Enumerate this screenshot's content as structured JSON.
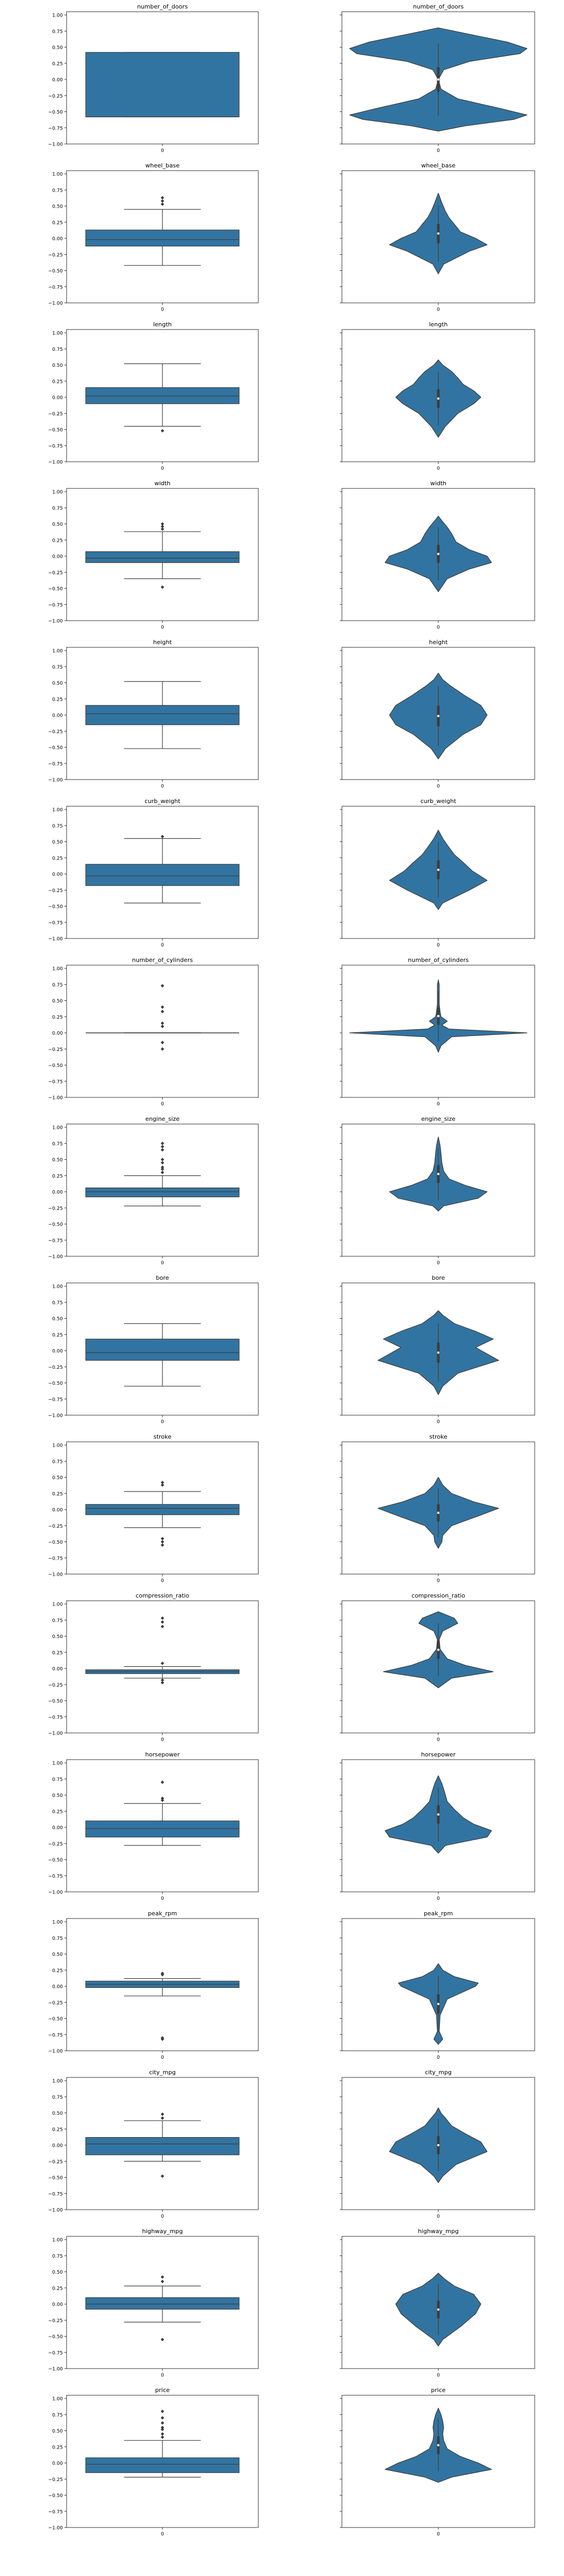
{
  "colors": {
    "fill": "#3274a1",
    "edge": "#3d3d3d",
    "axis": "#000000"
  },
  "shared_axes": {
    "ylim": [
      -1.0,
      1.05
    ],
    "yticks": [
      -1.0,
      -0.75,
      -0.5,
      -0.25,
      0.0,
      0.25,
      0.5,
      0.75,
      1.0
    ],
    "ytick_labels": [
      "−1.00",
      "−0.75",
      "−0.50",
      "−0.25",
      "0.00",
      "0.25",
      "0.50",
      "0.75",
      "1.00"
    ],
    "xtick_label": "0"
  },
  "chart_data": [
    {
      "type": "box",
      "title": "number_of_doors",
      "box": {
        "q1": -0.58,
        "median": -0.58,
        "q3": 0.42,
        "whislo": -0.58,
        "whishi": 0.42,
        "fliers": []
      }
    },
    {
      "type": "violin",
      "title": "number_of_doors",
      "density": [
        [
          -0.8,
          0.0
        ],
        [
          -0.72,
          0.3
        ],
        [
          -0.62,
          0.85
        ],
        [
          -0.55,
          1.0
        ],
        [
          -0.45,
          0.7
        ],
        [
          -0.3,
          0.22
        ],
        [
          -0.15,
          0.03
        ],
        [
          0.0,
          0.0
        ],
        [
          0.15,
          0.06
        ],
        [
          0.28,
          0.35
        ],
        [
          0.4,
          0.92
        ],
        [
          0.48,
          1.0
        ],
        [
          0.58,
          0.78
        ],
        [
          0.7,
          0.35
        ],
        [
          0.8,
          0.0
        ]
      ]
    },
    {
      "type": "box",
      "title": "wheel_base",
      "box": {
        "q1": -0.12,
        "median": -0.02,
        "q3": 0.13,
        "whislo": -0.42,
        "whishi": 0.45,
        "fliers": [
          0.53,
          0.58,
          0.63
        ]
      }
    },
    {
      "type": "violin",
      "title": "wheel_base",
      "density": [
        [
          -0.55,
          0.0
        ],
        [
          -0.4,
          0.06
        ],
        [
          -0.2,
          0.35
        ],
        [
          -0.1,
          0.55
        ],
        [
          0.0,
          0.42
        ],
        [
          0.1,
          0.25
        ],
        [
          0.22,
          0.18
        ],
        [
          0.32,
          0.12
        ],
        [
          0.42,
          0.08
        ],
        [
          0.55,
          0.04
        ],
        [
          0.7,
          0.0
        ]
      ]
    },
    {
      "type": "box",
      "title": "length",
      "box": {
        "q1": -0.1,
        "median": 0.02,
        "q3": 0.15,
        "whislo": -0.45,
        "whishi": 0.52,
        "fliers": [
          -0.52
        ]
      }
    },
    {
      "type": "violin",
      "title": "length",
      "density": [
        [
          -0.62,
          0.0
        ],
        [
          -0.45,
          0.08
        ],
        [
          -0.25,
          0.22
        ],
        [
          -0.1,
          0.4
        ],
        [
          0.0,
          0.48
        ],
        [
          0.1,
          0.4
        ],
        [
          0.2,
          0.28
        ],
        [
          0.3,
          0.22
        ],
        [
          0.4,
          0.15
        ],
        [
          0.5,
          0.05
        ],
        [
          0.58,
          0.0
        ]
      ]
    },
    {
      "type": "box",
      "title": "width",
      "box": {
        "q1": -0.1,
        "median": -0.03,
        "q3": 0.07,
        "whislo": -0.35,
        "whishi": 0.38,
        "fliers": [
          -0.48,
          0.42,
          0.46,
          0.5
        ]
      }
    },
    {
      "type": "violin",
      "title": "width",
      "density": [
        [
          -0.55,
          0.0
        ],
        [
          -0.35,
          0.1
        ],
        [
          -0.2,
          0.35
        ],
        [
          -0.1,
          0.6
        ],
        [
          0.0,
          0.55
        ],
        [
          0.1,
          0.35
        ],
        [
          0.22,
          0.2
        ],
        [
          0.35,
          0.15
        ],
        [
          0.45,
          0.1
        ],
        [
          0.55,
          0.04
        ],
        [
          0.62,
          0.0
        ]
      ]
    },
    {
      "type": "box",
      "title": "height",
      "box": {
        "q1": -0.15,
        "median": 0.02,
        "q3": 0.15,
        "whislo": -0.52,
        "whishi": 0.52,
        "fliers": []
      }
    },
    {
      "type": "violin",
      "title": "height",
      "density": [
        [
          -0.68,
          0.0
        ],
        [
          -0.52,
          0.08
        ],
        [
          -0.3,
          0.28
        ],
        [
          -0.15,
          0.48
        ],
        [
          0.0,
          0.55
        ],
        [
          0.15,
          0.48
        ],
        [
          0.3,
          0.3
        ],
        [
          0.45,
          0.14
        ],
        [
          0.55,
          0.05
        ],
        [
          0.65,
          0.0
        ]
      ]
    },
    {
      "type": "box",
      "title": "curb_weight",
      "box": {
        "q1": -0.18,
        "median": -0.03,
        "q3": 0.15,
        "whislo": -0.45,
        "whishi": 0.55,
        "fliers": [
          0.58
        ]
      }
    },
    {
      "type": "violin",
      "title": "curb_weight",
      "density": [
        [
          -0.55,
          0.0
        ],
        [
          -0.45,
          0.05
        ],
        [
          -0.25,
          0.35
        ],
        [
          -0.1,
          0.55
        ],
        [
          0.05,
          0.38
        ],
        [
          0.18,
          0.28
        ],
        [
          0.3,
          0.18
        ],
        [
          0.45,
          0.1
        ],
        [
          0.55,
          0.05
        ],
        [
          0.68,
          0.0
        ]
      ]
    },
    {
      "type": "box",
      "title": "number_of_cylinders",
      "box": {
        "q1": 0.0,
        "median": 0.0,
        "q3": 0.0,
        "whislo": 0.0,
        "whishi": 0.0,
        "fliers": [
          -0.25,
          -0.15,
          0.1,
          0.15,
          0.33,
          0.4,
          0.73
        ]
      }
    },
    {
      "type": "violin",
      "title": "number_of_cylinders",
      "density": [
        [
          -0.3,
          0.0
        ],
        [
          -0.2,
          0.03
        ],
        [
          -0.06,
          0.15
        ],
        [
          0.0,
          1.0
        ],
        [
          0.06,
          0.12
        ],
        [
          0.12,
          0.04
        ],
        [
          0.18,
          0.1
        ],
        [
          0.25,
          0.03
        ],
        [
          0.33,
          0.02
        ],
        [
          0.45,
          0.01
        ],
        [
          0.6,
          0.01
        ],
        [
          0.75,
          0.01
        ],
        [
          0.82,
          0.0
        ]
      ]
    },
    {
      "type": "box",
      "title": "engine_size",
      "box": {
        "q1": -0.08,
        "median": 0.0,
        "q3": 0.06,
        "whislo": -0.22,
        "whishi": 0.25,
        "fliers": [
          0.3,
          0.35,
          0.38,
          0.45,
          0.5,
          0.65,
          0.7,
          0.75
        ]
      }
    },
    {
      "type": "violin",
      "title": "engine_size",
      "density": [
        [
          -0.3,
          0.0
        ],
        [
          -0.22,
          0.06
        ],
        [
          -0.1,
          0.45
        ],
        [
          0.0,
          0.55
        ],
        [
          0.1,
          0.3
        ],
        [
          0.2,
          0.12
        ],
        [
          0.32,
          0.06
        ],
        [
          0.45,
          0.04
        ],
        [
          0.6,
          0.03
        ],
        [
          0.72,
          0.02
        ],
        [
          0.85,
          0.0
        ]
      ]
    },
    {
      "type": "box",
      "title": "bore",
      "box": {
        "q1": -0.15,
        "median": -0.03,
        "q3": 0.18,
        "whislo": -0.55,
        "whishi": 0.42,
        "fliers": []
      }
    },
    {
      "type": "violin",
      "title": "bore",
      "density": [
        [
          -0.68,
          0.0
        ],
        [
          -0.55,
          0.05
        ],
        [
          -0.35,
          0.22
        ],
        [
          -0.15,
          0.68
        ],
        [
          -0.05,
          0.55
        ],
        [
          0.05,
          0.42
        ],
        [
          0.18,
          0.62
        ],
        [
          0.3,
          0.42
        ],
        [
          0.42,
          0.18
        ],
        [
          0.55,
          0.05
        ],
        [
          0.62,
          0.0
        ]
      ]
    },
    {
      "type": "box",
      "title": "stroke",
      "box": {
        "q1": -0.08,
        "median": 0.02,
        "q3": 0.08,
        "whislo": -0.28,
        "whishi": 0.28,
        "fliers": [
          -0.55,
          -0.5,
          -0.45,
          0.38,
          0.42
        ]
      }
    },
    {
      "type": "violin",
      "title": "stroke",
      "density": [
        [
          -0.6,
          0.0
        ],
        [
          -0.5,
          0.04
        ],
        [
          -0.4,
          0.05
        ],
        [
          -0.25,
          0.15
        ],
        [
          -0.1,
          0.45
        ],
        [
          0.02,
          0.68
        ],
        [
          0.12,
          0.4
        ],
        [
          0.25,
          0.15
        ],
        [
          0.38,
          0.05
        ],
        [
          0.5,
          0.0
        ]
      ]
    },
    {
      "type": "box",
      "title": "compression_ratio",
      "box": {
        "q1": -0.08,
        "median": -0.05,
        "q3": -0.02,
        "whislo": -0.15,
        "whishi": 0.03,
        "fliers": [
          -0.22,
          -0.18,
          0.08,
          0.65,
          0.72,
          0.78
        ]
      }
    },
    {
      "type": "violin",
      "title": "compression_ratio",
      "density": [
        [
          -0.3,
          0.0
        ],
        [
          -0.15,
          0.15
        ],
        [
          -0.05,
          0.62
        ],
        [
          0.05,
          0.3
        ],
        [
          0.15,
          0.1
        ],
        [
          0.3,
          0.02
        ],
        [
          0.45,
          0.01
        ],
        [
          0.58,
          0.05
        ],
        [
          0.7,
          0.22
        ],
        [
          0.78,
          0.18
        ],
        [
          0.88,
          0.0
        ]
      ]
    },
    {
      "type": "box",
      "title": "horsepower",
      "box": {
        "q1": -0.15,
        "median": -0.02,
        "q3": 0.1,
        "whislo": -0.28,
        "whishi": 0.37,
        "fliers": [
          0.42,
          0.45,
          0.7
        ]
      }
    },
    {
      "type": "violin",
      "title": "horsepower",
      "density": [
        [
          -0.4,
          0.0
        ],
        [
          -0.28,
          0.08
        ],
        [
          -0.15,
          0.55
        ],
        [
          -0.05,
          0.6
        ],
        [
          0.05,
          0.4
        ],
        [
          0.15,
          0.28
        ],
        [
          0.28,
          0.18
        ],
        [
          0.4,
          0.1
        ],
        [
          0.55,
          0.07
        ],
        [
          0.68,
          0.04
        ],
        [
          0.8,
          0.0
        ]
      ]
    },
    {
      "type": "box",
      "title": "peak_rpm",
      "box": {
        "q1": -0.02,
        "median": 0.03,
        "q3": 0.08,
        "whislo": -0.15,
        "whishi": 0.12,
        "fliers": [
          -0.82,
          -0.8,
          0.18,
          0.2
        ]
      }
    },
    {
      "type": "violin",
      "title": "peak_rpm",
      "density": [
        [
          -0.9,
          0.0
        ],
        [
          -0.82,
          0.05
        ],
        [
          -0.7,
          0.01
        ],
        [
          -0.45,
          0.02
        ],
        [
          -0.2,
          0.1
        ],
        [
          0.0,
          0.42
        ],
        [
          0.05,
          0.45
        ],
        [
          0.15,
          0.18
        ],
        [
          0.25,
          0.05
        ],
        [
          0.35,
          0.0
        ]
      ]
    },
    {
      "type": "box",
      "title": "city_mpg",
      "box": {
        "q1": -0.15,
        "median": 0.02,
        "q3": 0.12,
        "whislo": -0.25,
        "whishi": 0.38,
        "fliers": [
          -0.48,
          0.42,
          0.48
        ]
      }
    },
    {
      "type": "violin",
      "title": "city_mpg",
      "density": [
        [
          -0.58,
          0.0
        ],
        [
          -0.48,
          0.05
        ],
        [
          -0.3,
          0.2
        ],
        [
          -0.1,
          0.55
        ],
        [
          0.05,
          0.48
        ],
        [
          0.18,
          0.3
        ],
        [
          0.3,
          0.15
        ],
        [
          0.42,
          0.08
        ],
        [
          0.5,
          0.03
        ],
        [
          0.58,
          0.0
        ]
      ]
    },
    {
      "type": "box",
      "title": "highway_mpg",
      "box": {
        "q1": -0.08,
        "median": 0.0,
        "q3": 0.1,
        "whislo": -0.28,
        "whishi": 0.28,
        "fliers": [
          -0.55,
          0.35,
          0.42
        ]
      }
    },
    {
      "type": "violin",
      "title": "highway_mpg",
      "density": [
        [
          -0.65,
          0.0
        ],
        [
          -0.55,
          0.05
        ],
        [
          -0.35,
          0.25
        ],
        [
          -0.15,
          0.42
        ],
        [
          0.0,
          0.48
        ],
        [
          0.15,
          0.4
        ],
        [
          0.28,
          0.18
        ],
        [
          0.4,
          0.06
        ],
        [
          0.48,
          0.0
        ]
      ]
    },
    {
      "type": "box",
      "title": "price",
      "box": {
        "q1": -0.15,
        "median": -0.02,
        "q3": 0.08,
        "whislo": -0.22,
        "whishi": 0.35,
        "fliers": [
          0.4,
          0.45,
          0.52,
          0.55,
          0.62,
          0.7,
          0.8
        ]
      }
    },
    {
      "type": "violin",
      "title": "price",
      "density": [
        [
          -0.3,
          0.0
        ],
        [
          -0.22,
          0.15
        ],
        [
          -0.1,
          0.6
        ],
        [
          0.0,
          0.45
        ],
        [
          0.1,
          0.25
        ],
        [
          0.22,
          0.1
        ],
        [
          0.35,
          0.06
        ],
        [
          0.45,
          0.05
        ],
        [
          0.55,
          0.06
        ],
        [
          0.65,
          0.05
        ],
        [
          0.75,
          0.03
        ],
        [
          0.85,
          0.0
        ]
      ]
    }
  ]
}
